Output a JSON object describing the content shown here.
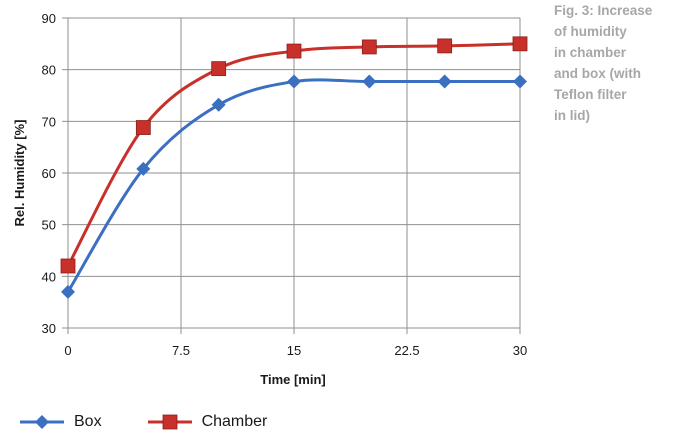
{
  "caption": {
    "lines": [
      "Fig. 3: Increase",
      "of humidity",
      "in chamber",
      "and box (with",
      "Teflon filter",
      "in lid)"
    ]
  },
  "colors": {
    "box": "#3a6fc2",
    "chamber": "#c8302a",
    "grid": "#8f8f8f"
  },
  "legend": {
    "box_label": "Box",
    "chamber_label": "Chamber"
  },
  "chart_data": {
    "type": "line",
    "title": "",
    "xlabel": "Time [min]",
    "ylabel": "Rel. Humidity [%]",
    "xlim": [
      0,
      30
    ],
    "ylim": [
      30,
      90
    ],
    "xticks": [
      0,
      7.5,
      15,
      22.5,
      30
    ],
    "xtick_labels": [
      "0",
      "7.5",
      "15",
      "22.5",
      "30"
    ],
    "yticks": [
      30,
      40,
      50,
      60,
      70,
      80,
      90
    ],
    "ytick_labels": [
      "30",
      "40",
      "50",
      "60",
      "70",
      "80",
      "90"
    ],
    "grid": true,
    "legend_position": "bottom-left",
    "series": [
      {
        "name": "Box",
        "marker": "diamond",
        "color": "#3a6fc2",
        "x": [
          0,
          5,
          10,
          15,
          20,
          25,
          30
        ],
        "y": [
          37,
          60.8,
          73.2,
          77.7,
          77.7,
          77.7,
          77.7
        ]
      },
      {
        "name": "Chamber",
        "marker": "square",
        "color": "#c8302a",
        "x": [
          0,
          5,
          10,
          15,
          20,
          25,
          30
        ],
        "y": [
          42,
          68.8,
          80.2,
          83.6,
          84.4,
          84.6,
          85
        ]
      }
    ]
  }
}
